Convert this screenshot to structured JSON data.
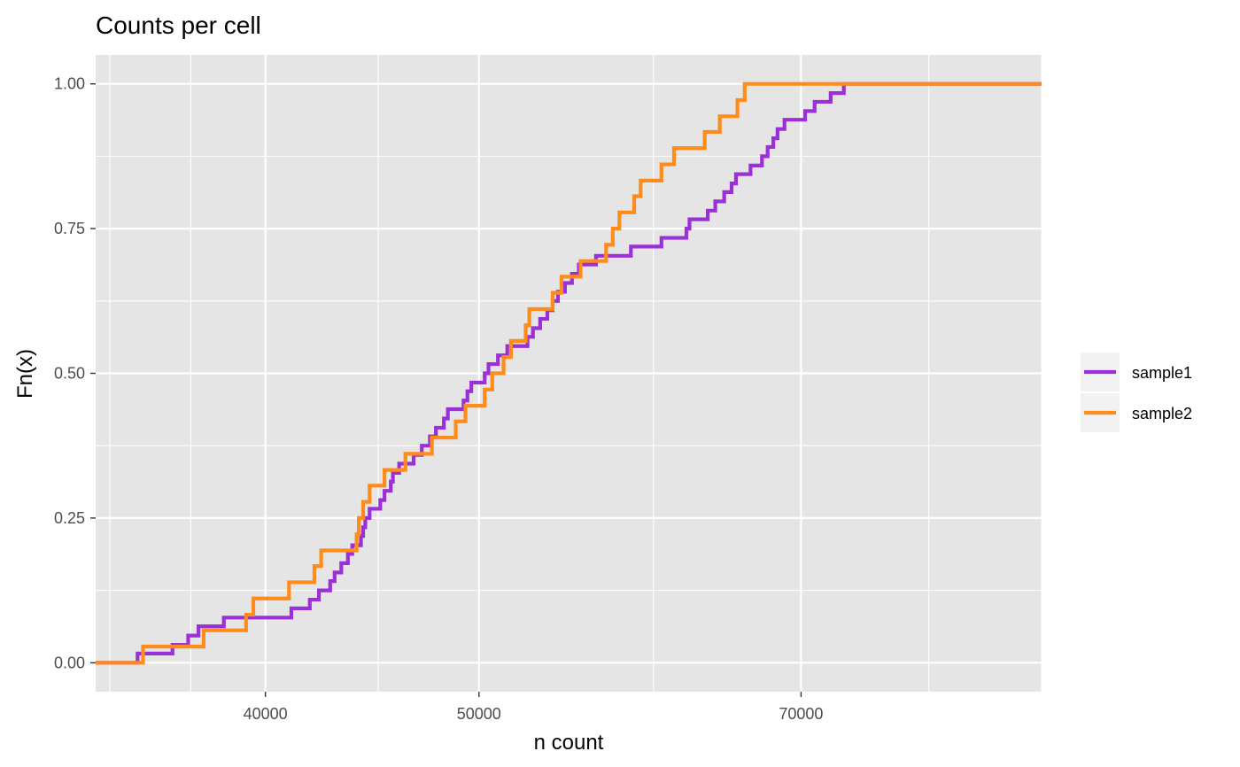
{
  "chart_data": {
    "type": "line",
    "title": "Counts per cell",
    "xlabel": "n count",
    "ylabel": "Fn(x)",
    "x_scale": "log10",
    "xlim": [
      33500,
      90000
    ],
    "ylim": [
      -0.05,
      1.05
    ],
    "x_ticks": [
      40000,
      50000,
      70000
    ],
    "x_tick_labels": [
      "40000",
      "50000",
      "70000"
    ],
    "x_minor_ticks": [
      34000,
      37000,
      45000,
      60000,
      80000,
      90000
    ],
    "y_ticks": [
      0,
      0.25,
      0.5,
      0.75,
      1
    ],
    "y_tick_labels": [
      "0.00",
      "0.25",
      "0.50",
      "0.75",
      "1.00"
    ],
    "grid": true,
    "legend_position": "right",
    "background": "#e5e5e5",
    "grid_color": "#ffffff",
    "series": [
      {
        "name": "sample1",
        "color": "#9b30d9",
        "x": [
          33500,
          35000,
          36300,
          36900,
          37300,
          38300,
          41100,
          41900,
          42300,
          42800,
          43000,
          43300,
          43600,
          43800,
          44200,
          44300,
          44400,
          44600,
          45100,
          45300,
          45600,
          45700,
          46000,
          46700,
          47100,
          47500,
          47800,
          48200,
          48400,
          49200,
          49400,
          49600,
          50300,
          50500,
          51000,
          51500,
          52600,
          52900,
          53300,
          53700,
          54000,
          54300,
          54700,
          55100,
          55500,
          56500,
          58600,
          60500,
          62100,
          62300,
          63500,
          64000,
          64600,
          65100,
          65400,
          66400,
          67200,
          67600,
          68000,
          68300,
          68800,
          70300,
          71000,
          72200,
          73200,
          74100,
          75300,
          76100,
          82500,
          83300,
          87700,
          90000
        ],
        "y": [
          0.0,
          0.016,
          0.031,
          0.047,
          0.063,
          0.078,
          0.094,
          0.109,
          0.125,
          0.141,
          0.156,
          0.172,
          0.188,
          0.203,
          0.219,
          0.234,
          0.25,
          0.266,
          0.281,
          0.297,
          0.313,
          0.328,
          0.344,
          0.359,
          0.375,
          0.391,
          0.406,
          0.422,
          0.438,
          0.453,
          0.469,
          0.484,
          0.5,
          0.516,
          0.531,
          0.547,
          0.563,
          0.578,
          0.594,
          0.609,
          0.625,
          0.641,
          0.656,
          0.672,
          0.688,
          0.703,
          0.719,
          0.734,
          0.75,
          0.766,
          0.781,
          0.797,
          0.813,
          0.828,
          0.844,
          0.859,
          0.875,
          0.891,
          0.906,
          0.922,
          0.938,
          0.953,
          0.969,
          0.984,
          1.0,
          1.0,
          1.0,
          1.0,
          1.0,
          1.0,
          1.0,
          1.0
        ]
      },
      {
        "name": "sample2",
        "color": "#ff8c1a",
        "x": [
          33500,
          35200,
          37500,
          39200,
          39500,
          41000,
          42100,
          42400,
          44000,
          44100,
          44300,
          44600,
          45300,
          46300,
          47600,
          48800,
          49300,
          50300,
          50700,
          51300,
          51700,
          52500,
          52700,
          54000,
          54500,
          55600,
          57100,
          57500,
          57900,
          58800,
          59200,
          60500,
          61300,
          63300,
          64300,
          65500,
          66000,
          67400,
          69000,
          69200,
          70600,
          71000,
          71800,
          72300,
          74300,
          77000,
          77400,
          77800,
          90000
        ],
        "y": [
          0.0,
          0.028,
          0.056,
          0.083,
          0.111,
          0.139,
          0.167,
          0.194,
          0.222,
          0.25,
          0.278,
          0.306,
          0.333,
          0.361,
          0.389,
          0.417,
          0.444,
          0.472,
          0.5,
          0.528,
          0.556,
          0.583,
          0.611,
          0.639,
          0.667,
          0.694,
          0.722,
          0.75,
          0.778,
          0.806,
          0.833,
          0.861,
          0.889,
          0.917,
          0.944,
          0.972,
          1.0,
          1.0,
          1.0,
          1.0,
          1.0,
          1.0,
          1.0,
          1.0,
          1.0,
          1.0,
          1.0,
          1.0,
          1.0
        ]
      }
    ]
  }
}
